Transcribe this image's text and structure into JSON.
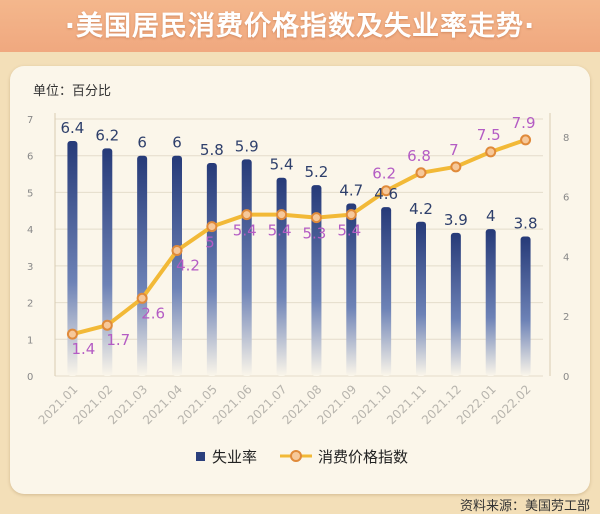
{
  "title": "·美国居民消费价格指数及失业率走势·",
  "unit_label": "单位：百分比",
  "source": "资料来源：美国劳工部",
  "chart_data": {
    "type": "bar+line",
    "categories": [
      "2021.01",
      "2021.02",
      "2021.03",
      "2021.04",
      "2021.05",
      "2021.06",
      "2021.07",
      "2021.08",
      "2021.09",
      "2021.10",
      "2021.11",
      "2021.12",
      "2022.01",
      "2022.02"
    ],
    "series": [
      {
        "name": "失业率",
        "type": "bar",
        "axis": "left",
        "values": [
          6.4,
          6.2,
          6,
          6,
          5.8,
          5.9,
          5.4,
          5.2,
          4.7,
          4.6,
          4.2,
          3.9,
          4,
          3.8
        ]
      },
      {
        "name": "消费价格指数",
        "type": "line",
        "axis": "right",
        "values": [
          1.4,
          1.7,
          2.6,
          4.2,
          5,
          5.4,
          5.4,
          5.3,
          5.4,
          6.2,
          6.8,
          7,
          7.5,
          7.9
        ]
      }
    ],
    "left_axis": {
      "ylim": [
        0,
        7
      ],
      "ticks": [
        0,
        1,
        2,
        3,
        4,
        5,
        6,
        7
      ]
    },
    "right_axis": {
      "ylim": [
        0,
        8.6
      ],
      "ticks": [
        0,
        2,
        4,
        6,
        8
      ]
    },
    "legend_position": "bottom",
    "colors": {
      "bar": "#2b3f7c",
      "line": "#f2b937",
      "marker_fill": "#f6c89a",
      "marker_stroke": "#e08a3a",
      "cpi_label": "#b45cc4",
      "unemp_label": "#2e3f6b"
    }
  }
}
